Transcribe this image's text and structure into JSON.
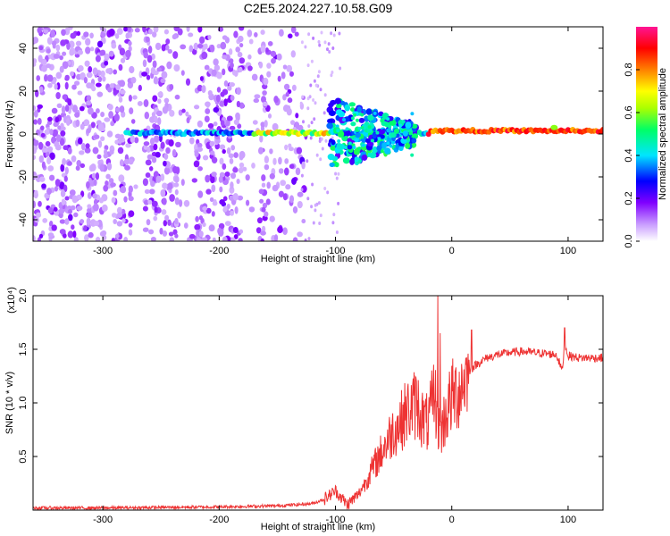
{
  "title": "C2E5.2024.227.10.58.G09",
  "chart_data": [
    {
      "type": "heatmap",
      "xlabel": "Height of straight line (km)",
      "ylabel": "Frequency (Hz)",
      "xlim": [
        -360,
        130
      ],
      "ylim": [
        -50,
        50
      ],
      "xticks": [
        -300,
        -200,
        -100,
        0,
        100
      ],
      "yticks": [
        -40,
        -20,
        0,
        20,
        40
      ],
      "colorbar": {
        "label": "Normalized spectral amplitude",
        "range": [
          0,
          1
        ],
        "ticks": [
          0.0,
          0.2,
          0.4,
          0.6,
          0.8
        ],
        "colors": [
          "#ffffff",
          "#8000ff",
          "#0000ff",
          "#00e5ff",
          "#00ff66",
          "#aaff00",
          "#ffff00",
          "#ff8000",
          "#ff0000",
          "#ff1493"
        ]
      },
      "features": {
        "noise_region_x": [
          -360,
          -130
        ],
        "sparse_noise_x": [
          -130,
          -100
        ],
        "carrier_frequency_hz": 0,
        "carrier_start_x": -275,
        "scatter_region_x": [
          -105,
          -30
        ],
        "strong_carrier_x": [
          -20,
          130
        ]
      }
    },
    {
      "type": "line",
      "xlabel": "Height of straight line (km)",
      "ylabel": "SNR (10 * v/v)",
      "y_multiplier": "(x10⁴)",
      "xlim": [
        -360,
        130
      ],
      "ylim": [
        0,
        2.0
      ],
      "xticks": [
        -300,
        -200,
        -100,
        0,
        100
      ],
      "yticks": [
        0.5,
        1.0,
        1.5,
        2.0
      ],
      "color": "#ee3333",
      "series": [
        {
          "x": [
            -360,
            -300,
            -250,
            -200,
            -150,
            -120,
            -110,
            -100,
            -95,
            -90,
            -85,
            -80,
            -75,
            -70,
            -65,
            -60,
            -55,
            -50,
            -45,
            -40,
            -35,
            -30,
            -25,
            -20,
            -15,
            -10,
            -5,
            0,
            5,
            10,
            15,
            20,
            30,
            40,
            50,
            60,
            70,
            80,
            90,
            95,
            97,
            100,
            110,
            120,
            130
          ],
          "y": [
            0.02,
            0.02,
            0.025,
            0.03,
            0.04,
            0.06,
            0.1,
            0.18,
            0.12,
            0.05,
            0.1,
            0.15,
            0.25,
            0.35,
            0.45,
            0.55,
            0.65,
            0.75,
            0.8,
            0.9,
            0.95,
            1.0,
            0.85,
            0.8,
            1.1,
            0.7,
            0.9,
            1.05,
            1.1,
            1.2,
            1.3,
            1.35,
            1.42,
            1.45,
            1.47,
            1.48,
            1.47,
            1.46,
            1.45,
            1.3,
            1.55,
            1.44,
            1.42,
            1.42,
            1.42
          ],
          "spikes": [
            {
              "x": -12,
              "y": 2.0
            },
            {
              "x": -10,
              "y": 1.65
            },
            {
              "x": 97,
              "y": 1.7
            },
            {
              "x": 17,
              "y": 1.68
            }
          ]
        }
      ]
    }
  ]
}
